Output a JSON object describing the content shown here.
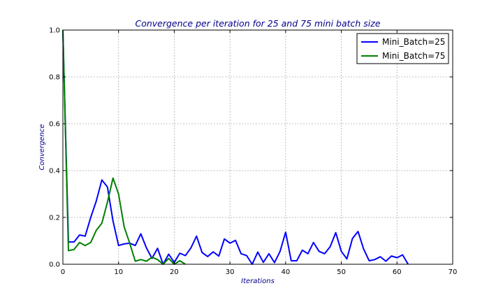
{
  "chart_data": {
    "type": "line",
    "title": "Convergence per iteration for 25 and 75 mini batch size",
    "xlabel": "Iterations",
    "ylabel": "Convergence",
    "xlim": [
      0,
      70
    ],
    "ylim": [
      0.0,
      1.0
    ],
    "x_ticks": [
      "0",
      "10",
      "20",
      "30",
      "40",
      "50",
      "60",
      "70"
    ],
    "y_ticks": [
      "0.0",
      "0.2",
      "0.4",
      "0.6",
      "0.8",
      "1.0"
    ],
    "grid": true,
    "legend_position": "top-right",
    "series": [
      {
        "name": "Mini_Batch=25",
        "color": "#0000ff",
        "x": [
          0,
          1,
          2,
          3,
          4,
          5,
          6,
          7,
          8,
          9,
          10,
          11,
          12,
          13,
          14,
          15,
          16,
          17,
          18,
          19,
          20,
          21,
          22,
          23,
          24,
          25,
          26,
          27,
          28,
          29,
          30,
          31,
          32,
          33,
          34,
          35,
          36,
          37,
          38,
          39,
          40,
          41,
          42,
          43,
          44,
          45,
          46,
          47,
          48,
          49,
          50,
          51,
          52,
          53,
          54,
          55,
          56,
          57,
          58,
          59,
          60,
          61,
          62
        ],
        "values": [
          1.0,
          0.095,
          0.095,
          0.125,
          0.12,
          0.2,
          0.27,
          0.36,
          0.33,
          0.185,
          0.08,
          0.087,
          0.09,
          0.08,
          0.13,
          0.07,
          0.025,
          0.068,
          0.0,
          0.043,
          0.008,
          0.047,
          0.037,
          0.07,
          0.12,
          0.05,
          0.033,
          0.053,
          0.035,
          0.108,
          0.09,
          0.102,
          0.045,
          0.037,
          0.0,
          0.052,
          0.008,
          0.045,
          0.007,
          0.055,
          0.137,
          0.015,
          0.015,
          0.06,
          0.045,
          0.093,
          0.055,
          0.045,
          0.075,
          0.135,
          0.055,
          0.023,
          0.11,
          0.14,
          0.065,
          0.015,
          0.02,
          0.032,
          0.013,
          0.035,
          0.028,
          0.04,
          0.0
        ]
      },
      {
        "name": "Mini_Batch=75",
        "color": "#008000",
        "x": [
          0,
          1,
          2,
          3,
          4,
          5,
          6,
          7,
          8,
          9,
          10,
          11,
          12,
          13,
          14,
          15,
          16,
          17,
          18,
          19,
          20,
          21,
          22
        ],
        "values": [
          1.0,
          0.058,
          0.063,
          0.093,
          0.08,
          0.093,
          0.145,
          0.175,
          0.265,
          0.368,
          0.3,
          0.16,
          0.09,
          0.013,
          0.02,
          0.013,
          0.03,
          0.02,
          0.0,
          0.025,
          0.0,
          0.015,
          0.0
        ]
      }
    ]
  }
}
